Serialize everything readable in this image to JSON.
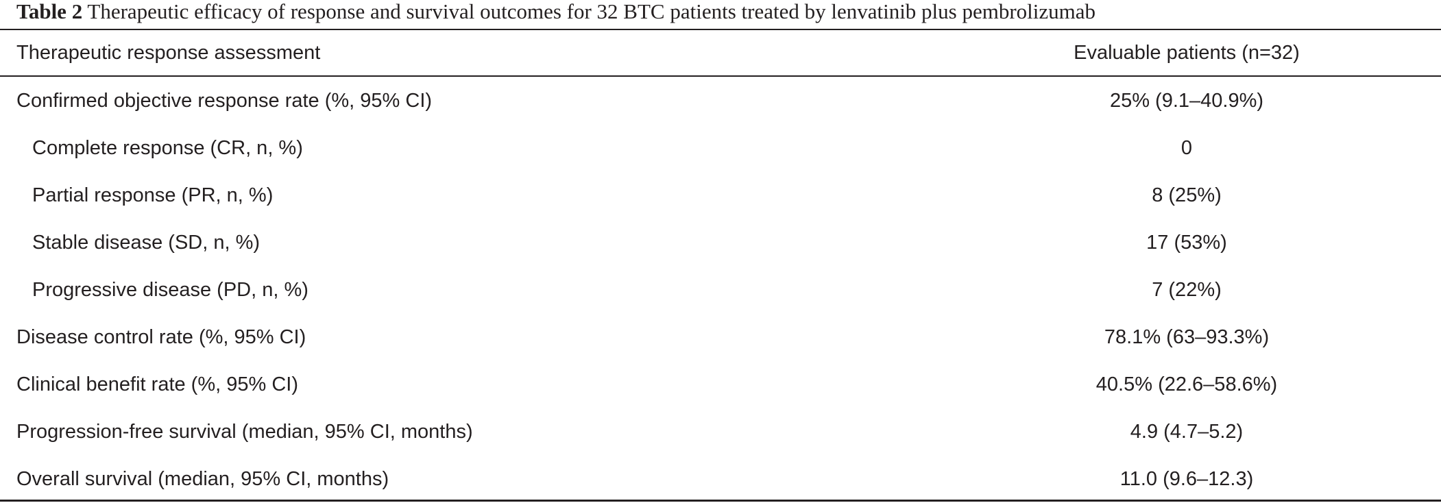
{
  "caption": {
    "label": "Table 2",
    "text": "Therapeutic efficacy of response and survival outcomes for 32 BTC patients treated by lenvatinib plus pembrolizumab"
  },
  "table": {
    "header": {
      "col1": "Therapeutic response assessment",
      "col2": "Evaluable patients (n=32)"
    },
    "rows": [
      {
        "label": "Confirmed objective response rate (%, 95% CI)",
        "value": "25% (9.1–40.9%)",
        "indent": false
      },
      {
        "label": "Complete response (CR, n, %)",
        "value": "0",
        "indent": true
      },
      {
        "label": "Partial response (PR, n, %)",
        "value": "8 (25%)",
        "indent": true
      },
      {
        "label": "Stable disease (SD, n, %)",
        "value": "17 (53%)",
        "indent": true
      },
      {
        "label": "Progressive disease (PD, n, %)",
        "value": "7 (22%)",
        "indent": true
      },
      {
        "label": "Disease control rate (%, 95% CI)",
        "value": "78.1% (63–93.3%)",
        "indent": false
      },
      {
        "label": "Clinical benefit rate (%, 95% CI)",
        "value": "40.5% (22.6–58.6%)",
        "indent": false
      },
      {
        "label": "Progression-free survival (median, 95% CI, months)",
        "value": "4.9 (4.7–5.2)",
        "indent": false
      },
      {
        "label": "Overall survival (median, 95% CI, months)",
        "value": "11.0 (9.6–12.3)",
        "indent": false
      }
    ]
  }
}
